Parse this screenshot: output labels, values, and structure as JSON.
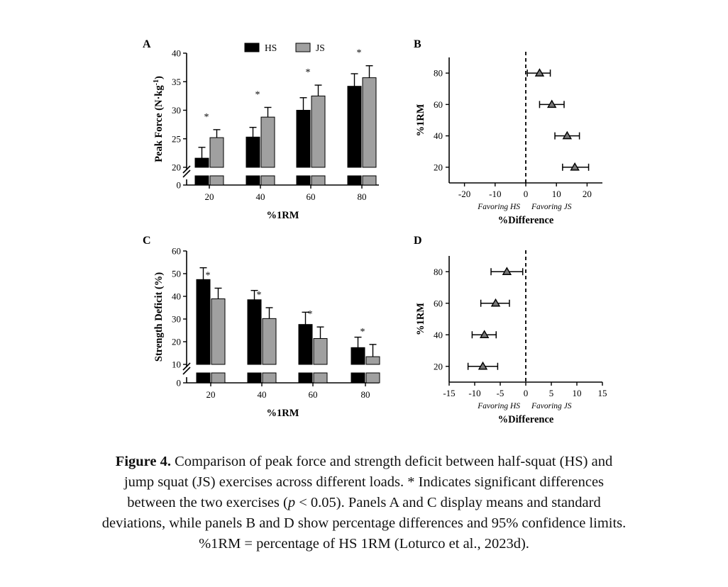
{
  "chart_data": [
    {
      "panel": "A",
      "type": "bar",
      "title": "",
      "xlabel": "%1RM",
      "ylabel": "Peak Force (N·kg⁻¹)",
      "ylabel_parts": {
        "main": "Peak Force (N",
        "dot": "·",
        "unit": "kg",
        "sup": "-1",
        "close": ")"
      },
      "categories": [
        "20",
        "40",
        "60",
        "80"
      ],
      "series": [
        {
          "name": "HS",
          "color": "#000000",
          "values": [
            21.6,
            25.3,
            30.0,
            34.2
          ],
          "sd": [
            1.9,
            1.7,
            2.2,
            2.2
          ]
        },
        {
          "name": "JS",
          "color": "#a0a0a0",
          "values": [
            25.2,
            28.8,
            32.5,
            35.7
          ],
          "sd": [
            1.4,
            1.7,
            1.9,
            2.1
          ]
        }
      ],
      "ylim": [
        0,
        40
      ],
      "ybreak": [
        0,
        20
      ],
      "yticks": [
        "0",
        "20",
        "25",
        "30",
        "35",
        "40"
      ],
      "annotations": [
        "*",
        "*",
        "*",
        "*"
      ],
      "legend": "top"
    },
    {
      "panel": "B",
      "type": "scatter",
      "xlabel": "%Difference",
      "ylabel": "%1RM",
      "xlim": [
        -25,
        25
      ],
      "xticks": [
        "-20",
        "-10",
        "0",
        "10",
        "20"
      ],
      "yticks": [
        "20",
        "40",
        "60",
        "80"
      ],
      "y": [
        80,
        60,
        40,
        20
      ],
      "x": [
        4.5,
        8.5,
        13.5,
        16.0
      ],
      "ci": [
        [
          0.5,
          8.0
        ],
        [
          4.5,
          12.5
        ],
        [
          9.5,
          17.5
        ],
        [
          12.0,
          20.5
        ]
      ],
      "favor_left": "Favoring HS",
      "favor_right": "Favoring JS"
    },
    {
      "panel": "C",
      "type": "bar",
      "xlabel": "%1RM",
      "ylabel": "Strength Deficit (%)",
      "categories": [
        "20",
        "40",
        "60",
        "80"
      ],
      "series": [
        {
          "name": "HS",
          "color": "#000000",
          "values": [
            47.4,
            38.5,
            27.6,
            17.4
          ],
          "sd": [
            5.2,
            4.1,
            5.4,
            4.6
          ]
        },
        {
          "name": "JS",
          "color": "#a0a0a0",
          "values": [
            38.9,
            30.2,
            21.4,
            13.4
          ],
          "sd": [
            4.7,
            4.8,
            5.1,
            5.4
          ]
        }
      ],
      "ylim": [
        0,
        60
      ],
      "ybreak": [
        0,
        10
      ],
      "yticks": [
        "0",
        "10",
        "20",
        "30",
        "40",
        "50",
        "60"
      ],
      "annotations": [
        "*",
        "*",
        "*",
        "*"
      ]
    },
    {
      "panel": "D",
      "type": "scatter",
      "xlabel": "%Difference",
      "ylabel": "%1RM",
      "xlim": [
        -15,
        15
      ],
      "xticks": [
        "-15",
        "-10",
        "-5",
        "0",
        "5",
        "10",
        "15"
      ],
      "yticks": [
        "20",
        "40",
        "60",
        "80"
      ],
      "y": [
        80,
        60,
        40,
        20
      ],
      "x": [
        -3.7,
        -5.9,
        -8.1,
        -8.4
      ],
      "ci": [
        [
          -6.8,
          -0.6
        ],
        [
          -8.8,
          -3.2
        ],
        [
          -10.5,
          -5.8
        ],
        [
          -11.3,
          -5.5
        ]
      ],
      "favor_left": "Favoring HS",
      "favor_right": "Favoring JS"
    }
  ],
  "caption": {
    "label": "Figure 4.",
    "line1": " Comparison of peak force and strength deficit between half-squat (HS) and",
    "line2": "jump squat (JS) exercises across different loads. * Indicates significant differences",
    "line3a": "between the two exercises (",
    "line3p": "p",
    "line3b": " < 0.05). Panels A and C display means and standard",
    "line4": "deviations, while panels B and D show percentage differences and 95% confidence limits.",
    "line5": "%1RM = percentage of HS 1RM (Loturco et al., 2023d)."
  }
}
